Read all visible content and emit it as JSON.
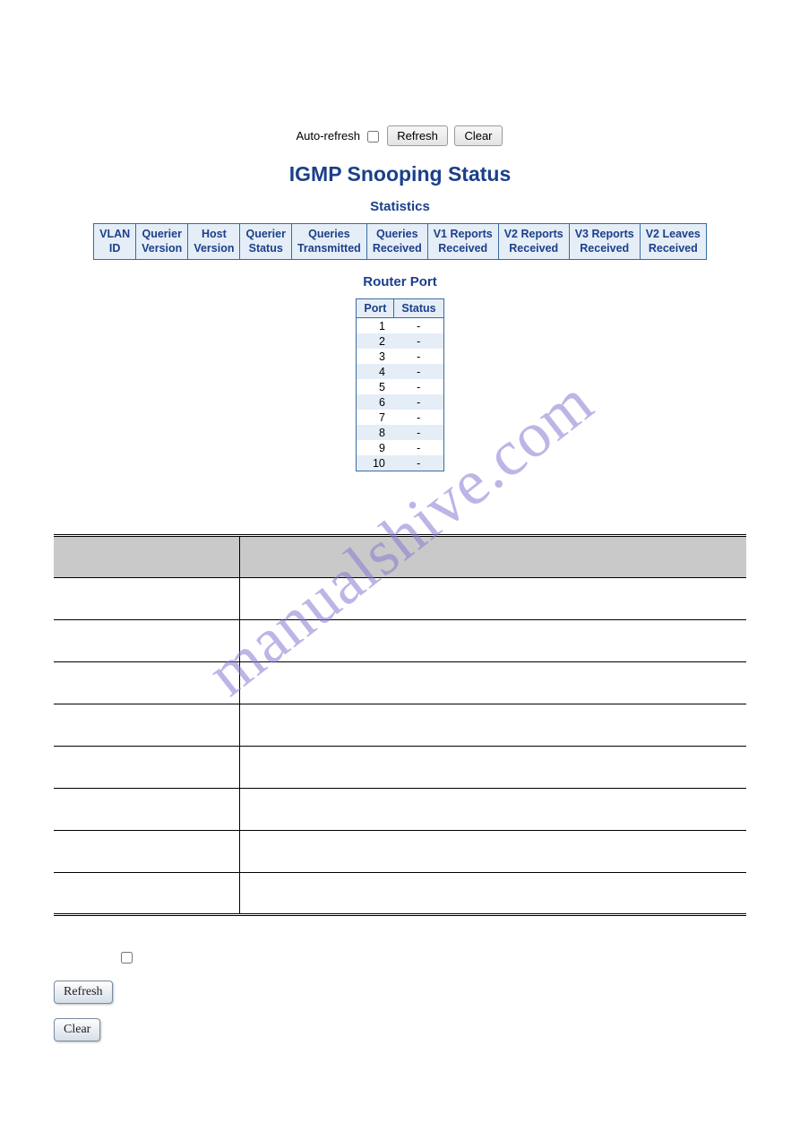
{
  "toolbar": {
    "auto_refresh_label": "Auto-refresh",
    "auto_refresh_checked": false,
    "refresh_label": "Refresh",
    "clear_label": "Clear"
  },
  "titles": {
    "main": "IGMP Snooping Status",
    "statistics": "Statistics",
    "router_port": "Router Port"
  },
  "stats_table": {
    "columns": [
      "VLAN\nID",
      "Querier\nVersion",
      "Host\nVersion",
      "Querier\nStatus",
      "Queries\nTransmitted",
      "Queries\nReceived",
      "V1 Reports\nReceived",
      "V2 Reports\nReceived",
      "V3 Reports\nReceived",
      "V2 Leaves\nReceived"
    ],
    "header_bg": "#e5eef7",
    "header_border": "#3b6aa0",
    "header_color": "#1b3f8a"
  },
  "port_table": {
    "columns": [
      "Port",
      "Status"
    ],
    "rows": [
      {
        "port": "1",
        "status": "-"
      },
      {
        "port": "2",
        "status": "-"
      },
      {
        "port": "3",
        "status": "-"
      },
      {
        "port": "4",
        "status": "-"
      },
      {
        "port": "5",
        "status": "-"
      },
      {
        "port": "6",
        "status": "-"
      },
      {
        "port": "7",
        "status": "-"
      },
      {
        "port": "8",
        "status": "-"
      },
      {
        "port": "9",
        "status": "-"
      },
      {
        "port": "10",
        "status": "-"
      }
    ],
    "row_bg_even": "#e5eef7",
    "row_bg_odd": "#ffffff"
  },
  "footer": {
    "refresh_label": "Refresh",
    "clear_label": "Clear"
  },
  "watermark": "manualshive.com",
  "colors": {
    "title": "#1b3f8a",
    "background": "#ffffff",
    "grid_header_bg": "#c9c9c9"
  }
}
